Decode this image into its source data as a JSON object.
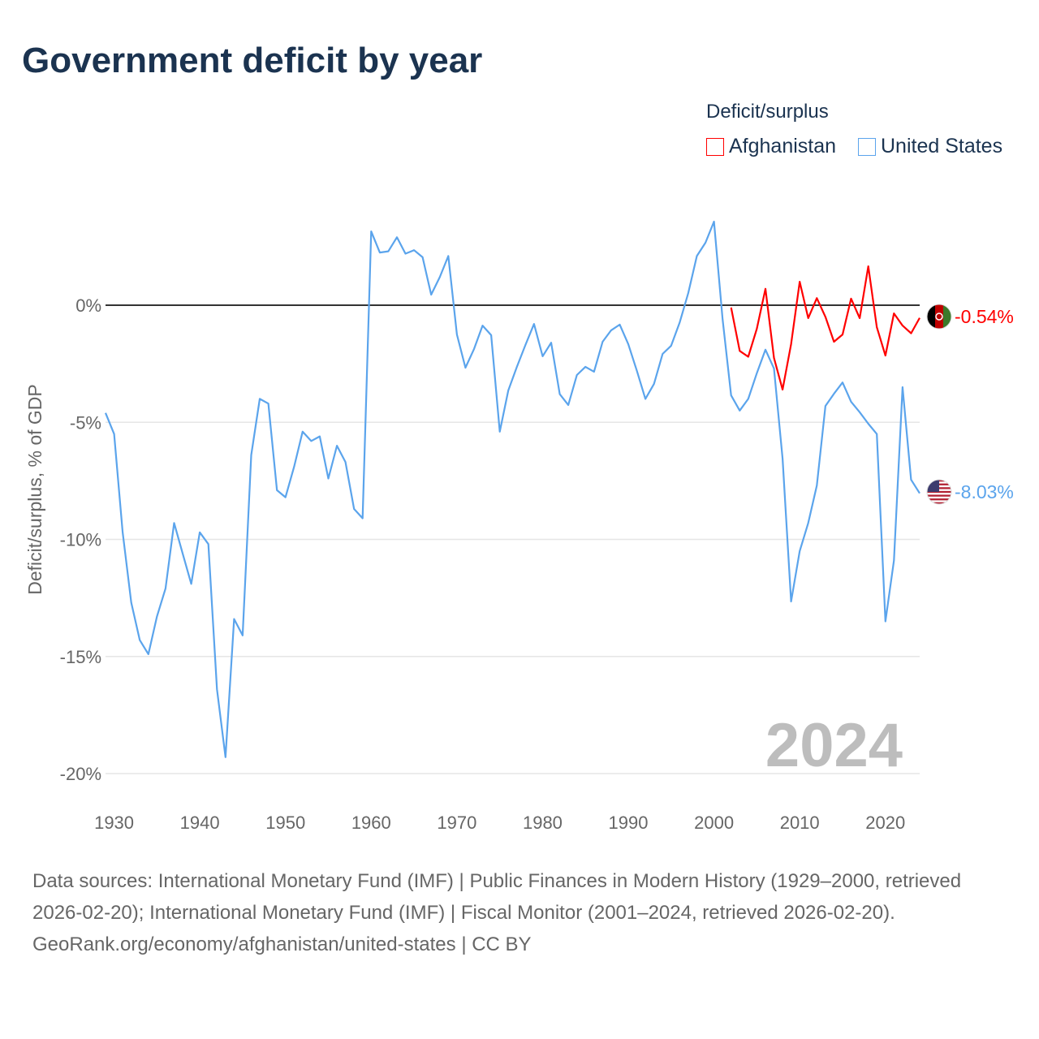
{
  "title": "Government deficit by year",
  "legend": {
    "title": "Deficit/surplus",
    "items": [
      {
        "label": "Afghanistan",
        "color": "#ff0000"
      },
      {
        "label": "United States",
        "color": "#5ba4ec"
      }
    ]
  },
  "year_watermark": "2024",
  "footer": {
    "sources": "Data sources: International Monetary Fund (IMF) | Public Finances in Modern History (1929–2000, retrieved 2026-02-20); International Monetary Fund (IMF) | Fiscal Monitor (2001–2024, retrieved 2026-02-20).",
    "credit": "GeoRank.org/economy/afghanistan/united-states | CC BY"
  },
  "chart_data": {
    "type": "line",
    "title": "Government deficit by year",
    "xlabel": "",
    "ylabel": "Deficit/surplus, % of GDP",
    "xlim": [
      1929,
      2024
    ],
    "ylim": [
      -20,
      4
    ],
    "x_ticks": [
      1930,
      1940,
      1950,
      1960,
      1970,
      1980,
      1990,
      2000,
      2010,
      2020
    ],
    "y_ticks": [
      {
        "v": 0,
        "label": "0%"
      },
      {
        "v": -5,
        "label": "-5%"
      },
      {
        "v": -10,
        "label": "-10%"
      },
      {
        "v": -15,
        "label": "-15%"
      },
      {
        "v": -20,
        "label": "-20%"
      }
    ],
    "series": [
      {
        "name": "United States",
        "color": "#5ba4ec",
        "end_label": "-8.03%",
        "start_year": 1929,
        "values": [
          -4.6,
          -5.5,
          -9.7,
          -12.7,
          -14.3,
          -14.9,
          -13.3,
          -12.1,
          -9.3,
          -10.6,
          -11.9,
          -9.7,
          -10.2,
          -16.4,
          -19.3,
          -13.4,
          -14.1,
          -6.4,
          -4.0,
          -4.2,
          -7.9,
          -8.2,
          -6.9,
          -5.4,
          -5.8,
          -5.6,
          -7.4,
          -6.0,
          -6.7,
          -8.7,
          -9.1,
          3.15,
          2.25,
          2.3,
          2.9,
          2.2,
          2.35,
          2.05,
          0.45,
          1.2,
          2.1,
          -1.25,
          -2.67,
          -1.87,
          -0.87,
          -1.28,
          -5.4,
          -3.64,
          -2.63,
          -1.7,
          -0.8,
          -2.18,
          -1.6,
          -3.8,
          -4.26,
          -2.98,
          -2.63,
          -2.84,
          -1.56,
          -1.07,
          -0.83,
          -1.66,
          -2.8,
          -4.0,
          -3.36,
          -2.08,
          -1.73,
          -0.73,
          0.52,
          2.1,
          2.67,
          3.57,
          -0.6,
          -3.85,
          -4.5,
          -4.0,
          -2.9,
          -1.9,
          -2.7,
          -6.55,
          -12.65,
          -10.5,
          -9.3,
          -7.7,
          -4.3,
          -3.78,
          -3.3,
          -4.12,
          -4.57,
          -5.06,
          -5.5,
          -13.5,
          -10.9,
          -3.5,
          -7.45,
          -8.03
        ]
      },
      {
        "name": "Afghanistan",
        "color": "#ff0000",
        "end_label": "-0.54%",
        "start_year": 2002,
        "values": [
          -0.1,
          -1.95,
          -2.2,
          -1.0,
          0.7,
          -2.25,
          -3.6,
          -1.66,
          1.0,
          -0.55,
          0.3,
          -0.5,
          -1.56,
          -1.25,
          0.28,
          -0.55,
          1.66,
          -0.94,
          -2.15,
          -0.35,
          -0.87,
          -1.2,
          -0.54
        ]
      }
    ]
  }
}
